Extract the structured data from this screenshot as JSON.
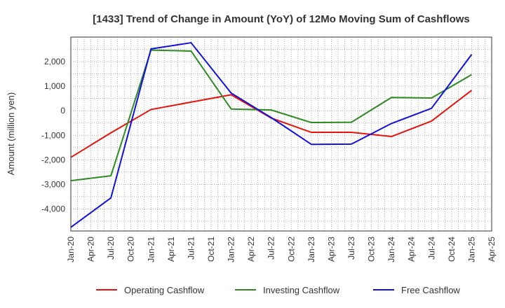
{
  "chart_data": {
    "type": "line",
    "title": "[1433]  Trend of Change in Amount (YoY) of 12Mo Moving Sum of Cashflows",
    "xlabel": "",
    "ylabel": "Amount (million yen)",
    "ylim": [
      -4900,
      3000
    ],
    "yticks": [
      2000,
      1000,
      0,
      -1000,
      -2000,
      -3000,
      -4000
    ],
    "ytick_labels": [
      "2,000",
      "1,000",
      "0",
      "-1,000",
      "-2,000",
      "-3,000",
      "-4,000"
    ],
    "x_tick_labels": [
      "Jan-20",
      "Apr-20",
      "Jul-20",
      "Oct-20",
      "Jan-21",
      "Apr-21",
      "Jul-21",
      "Oct-21",
      "Jan-22",
      "Apr-22",
      "Jul-22",
      "Oct-22",
      "Jan-23",
      "Apr-23",
      "Jul-23",
      "Oct-23",
      "Jan-24",
      "Apr-24",
      "Jul-24",
      "Oct-24",
      "Jan-25",
      "Apr-25"
    ],
    "categories": [
      "Jan-20",
      "Jul-20",
      "Jan-21",
      "Jul-21",
      "Jan-22",
      "Jul-22",
      "Jan-23",
      "Jul-23",
      "Jan-24",
      "Jul-24",
      "Jan-25"
    ],
    "series": [
      {
        "name": "Operating Cashflow",
        "color": "#e8120c",
        "values": [
          -1900,
          -900,
          50,
          350,
          650,
          -300,
          -880,
          -880,
          -1050,
          -420,
          830
        ]
      },
      {
        "name": "Investing Cashflow",
        "color": "#2e8b22",
        "values": [
          -2850,
          -2650,
          2470,
          2430,
          70,
          30,
          -480,
          -470,
          540,
          520,
          1470
        ]
      },
      {
        "name": "Free Cashflow",
        "color": "#1010e0",
        "values": [
          -4750,
          -3550,
          2520,
          2770,
          720,
          -280,
          -1370,
          -1360,
          -520,
          100,
          2290
        ]
      }
    ],
    "legend": "bottom"
  }
}
